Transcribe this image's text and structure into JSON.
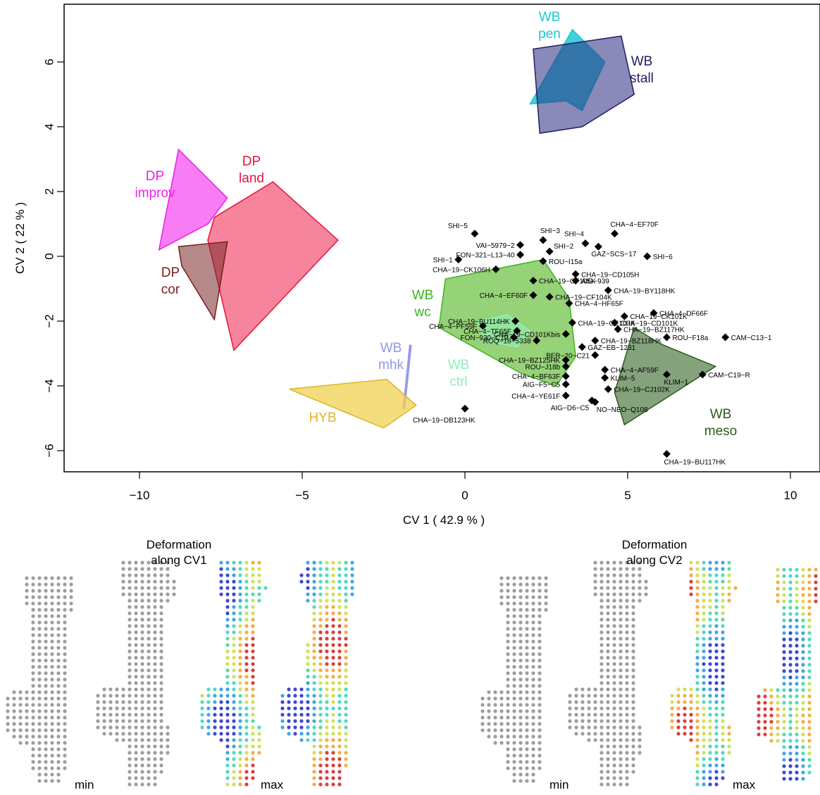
{
  "chart_data": {
    "type": "scatter",
    "xlabel": "CV 1 ( 42.9 % )",
    "ylabel": "CV 2 ( 22 % )",
    "xlim": [
      -12.4,
      10.9
    ],
    "ylim": [
      -6.7,
      7.6
    ],
    "xticks": [
      -10,
      -5,
      0,
      5,
      10
    ],
    "yticks": [
      -6,
      -4,
      -2,
      0,
      2,
      4,
      6
    ],
    "x_tick_labels": [
      "−10",
      "−5",
      "0",
      "5",
      "10"
    ],
    "y_tick_labels": [
      "−6",
      "−4",
      "−2",
      "0",
      "2",
      "4",
      "6"
    ],
    "points": [
      {
        "label": "SHI−5",
        "x": 0.3,
        "y": 0.7
      },
      {
        "label": "SHI−3",
        "x": 2.4,
        "y": 0.5
      },
      {
        "label": "SHI−4",
        "x": 3.7,
        "y": 0.4
      },
      {
        "label": "CHA−4−EF70F",
        "x": 4.6,
        "y": 0.7
      },
      {
        "label": "VAI−5979−2",
        "x": 1.7,
        "y": 0.35
      },
      {
        "label": "SHI−2",
        "x": 2.6,
        "y": 0.15
      },
      {
        "label": "GAZ−SCS−17",
        "x": 4.1,
        "y": 0.3
      },
      {
        "label": "FON−321−L13−40",
        "x": 1.7,
        "y": 0.05
      },
      {
        "label": "SHI−6",
        "x": 5.6,
        "y": 0.0
      },
      {
        "label": "SHI−1",
        "x": -0.2,
        "y": -0.1
      },
      {
        "label": "ROU−I15a",
        "x": 2.4,
        "y": -0.15
      },
      {
        "label": "CHA−19−CK106H",
        "x": 0.95,
        "y": -0.4
      },
      {
        "label": "CHA−19−CF105K",
        "x": 2.1,
        "y": -0.75
      },
      {
        "label": "CHA−19−CD105H",
        "x": 3.4,
        "y": -0.55
      },
      {
        "label": "AIG−939",
        "x": 3.4,
        "y": -0.75
      },
      {
        "label": "CHA−19−CF104K",
        "x": 2.6,
        "y": -1.25
      },
      {
        "label": "CHA−19−BY118HK",
        "x": 4.4,
        "y": -1.05
      },
      {
        "label": "CHA−4−EF60F",
        "x": 2.1,
        "y": -1.2
      },
      {
        "label": "CHA−4−HF65F",
        "x": 3.2,
        "y": -1.45
      },
      {
        "label": "CHA−19−CK101K",
        "x": 4.9,
        "y": -1.85
      },
      {
        "label": "CHA−4−DF66F",
        "x": 5.8,
        "y": -1.75
      },
      {
        "label": "CHA−19−BU114HK",
        "x": 1.55,
        "y": -2.0
      },
      {
        "label": "CHA−19−CE103K",
        "x": 3.3,
        "y": -2.05
      },
      {
        "label": "CHA−19−CD101K",
        "x": 4.6,
        "y": -2.05
      },
      {
        "label": "CHA−4−PF59F",
        "x": 0.55,
        "y": -2.15
      },
      {
        "label": "CHA−19−CD101Kbis",
        "x": 3.1,
        "y": -2.4
      },
      {
        "label": "CHA−19−BZ117HK",
        "x": 4.7,
        "y": -2.25
      },
      {
        "label": "CHA−4−TF65F",
        "x": 1.6,
        "y": -2.3
      },
      {
        "label": "FON−930−C19",
        "x": 1.5,
        "y": -2.5
      },
      {
        "label": "CAM−C13−1",
        "x": 8.0,
        "y": -2.5
      },
      {
        "label": "CHA−19−BZ118HK",
        "x": 4.0,
        "y": -2.6
      },
      {
        "label": "ROU−F18a",
        "x": 6.2,
        "y": -2.5
      },
      {
        "label": "ROQ−18−5338",
        "x": 2.2,
        "y": -2.6
      },
      {
        "label": "GAZ−EB−1231",
        "x": 3.6,
        "y": -2.8
      },
      {
        "label": "BER−20−C21",
        "x": 4.0,
        "y": -3.05
      },
      {
        "label": "CHA−19−BZ125HK",
        "x": 3.1,
        "y": -3.2
      },
      {
        "label": "ROU−J18b",
        "x": 3.1,
        "y": -3.4
      },
      {
        "label": "CHA−4−BF63F",
        "x": 3.1,
        "y": -3.7
      },
      {
        "label": "CHA−4−AF59F",
        "x": 4.3,
        "y": -3.5
      },
      {
        "label": "KLIM−5",
        "x": 4.3,
        "y": -3.75
      },
      {
        "label": "KLIM−1",
        "x": 6.2,
        "y": -3.65
      },
      {
        "label": "CAM−C19−R",
        "x": 7.3,
        "y": -3.65
      },
      {
        "label": "AIG−F5−C5",
        "x": 3.1,
        "y": -3.95
      },
      {
        "label": "CHA−4−YE61F",
        "x": 3.1,
        "y": -4.3
      },
      {
        "label": "CHA−19−CJ102K",
        "x": 4.4,
        "y": -4.1
      },
      {
        "label": "AIG−D6−C5",
        "x": 3.9,
        "y": -4.45
      },
      {
        "label": "NO−NEO−Q108",
        "x": 4.0,
        "y": -4.5
      },
      {
        "label": "CHA−19−DB123HK",
        "x": 0.0,
        "y": -4.7
      },
      {
        "label": "CHA−19−BU117HK",
        "x": 6.2,
        "y": -6.1
      }
    ],
    "groups": [
      {
        "name": "WB pen",
        "label_lines": [
          "WB",
          "pen"
        ],
        "color": "#1ec8d2",
        "fill": "rgba(30,200,210,0.85)",
        "hull": [
          [
            2.0,
            4.7
          ],
          [
            3.3,
            7.0
          ],
          [
            4.3,
            6.0
          ],
          [
            3.6,
            4.5
          ],
          [
            3.1,
            4.8
          ]
        ]
      },
      {
        "name": "WB stall",
        "label_lines": [
          "WB",
          "stall"
        ],
        "color": "#1e1e64",
        "fill": "rgba(40,40,130,0.55)",
        "hull": [
          [
            2.1,
            6.4
          ],
          [
            4.8,
            6.8
          ],
          [
            5.2,
            5.0
          ],
          [
            3.6,
            4.0
          ],
          [
            2.3,
            3.8
          ]
        ]
      },
      {
        "name": "DP improv",
        "label_lines": [
          "DP",
          "improv"
        ],
        "color": "#ee1ee6",
        "fill": "rgba(245,55,240,0.65)",
        "hull": [
          [
            -8.8,
            3.3
          ],
          [
            -7.3,
            1.8
          ],
          [
            -7.9,
            1.0
          ],
          [
            -9.4,
            0.2
          ]
        ]
      },
      {
        "name": "DP land",
        "label_lines": [
          "DP",
          "land"
        ],
        "color": "#e6143c",
        "fill": "rgba(240,50,90,0.60)",
        "hull": [
          [
            -5.9,
            2.3
          ],
          [
            -3.9,
            0.5
          ],
          [
            -7.1,
            -2.9
          ],
          [
            -7.9,
            0.5
          ],
          [
            -7.7,
            1.2
          ]
        ]
      },
      {
        "name": "DP cor",
        "label_lines": [
          "DP",
          "cor"
        ],
        "color": "#781e1e",
        "fill": "rgba(120,40,40,0.55)",
        "hull": [
          [
            -8.8,
            0.3
          ],
          [
            -7.3,
            0.45
          ],
          [
            -7.7,
            -1.95
          ],
          [
            -8.7,
            -0.3
          ]
        ]
      },
      {
        "name": "WB wc",
        "label_lines": [
          "WB",
          "wc"
        ],
        "color": "#3cb41e",
        "fill": "rgba(80,180,30,0.60)",
        "hull": [
          [
            -0.6,
            -0.7
          ],
          [
            2.4,
            -0.1
          ],
          [
            3.2,
            -1.3
          ],
          [
            3.4,
            -3.1
          ],
          [
            2.8,
            -4.0
          ],
          [
            1.7,
            -3.6
          ],
          [
            -0.8,
            -2.2
          ]
        ]
      },
      {
        "name": "WB ctrl",
        "label_lines": [
          "WB",
          "ctrl"
        ],
        "color": "#8cf0b4",
        "fill": "rgba(150,240,190,0.55)",
        "hull": [
          [
            0.4,
            -2.0
          ],
          [
            1.3,
            -1.8
          ],
          [
            2.0,
            -2.3
          ],
          [
            1.6,
            -2.8
          ],
          [
            0.6,
            -2.6
          ]
        ]
      },
      {
        "name": "WB meso",
        "label_lines": [
          "WB",
          "meso"
        ],
        "color": "#2d5a1e",
        "fill": "rgba(50,100,35,0.60)",
        "hull": [
          [
            5.2,
            -2.2
          ],
          [
            6.0,
            -2.7
          ],
          [
            7.7,
            -3.4
          ],
          [
            4.9,
            -5.2
          ],
          [
            4.6,
            -4.2
          ]
        ]
      },
      {
        "name": "WB mhk",
        "label_lines": [
          "WB",
          "mhk"
        ],
        "color": "#9696e6",
        "fill": "rgba(150,150,230,0.90)",
        "hull": [
          [
            -1.7,
            -2.75
          ],
          [
            -1.65,
            -2.75
          ],
          [
            -1.85,
            -4.7
          ],
          [
            -1.9,
            -4.7
          ]
        ]
      },
      {
        "name": "HYB",
        "label_lines": [
          "HYB"
        ],
        "color": "#dcb428",
        "fill": "rgba(240,210,80,0.75)",
        "hull": [
          [
            -5.4,
            -4.1
          ],
          [
            -2.4,
            -3.8
          ],
          [
            -1.5,
            -4.6
          ],
          [
            -2.5,
            -5.3
          ]
        ]
      }
    ]
  },
  "deformation": {
    "cv1": {
      "title_line1": "Deformation",
      "title_line2": "along CV1",
      "min_label": "min",
      "max_label": "max"
    },
    "cv2": {
      "title_line1": "Deformation",
      "title_line2": "along CV2",
      "min_label": "min",
      "max_label": "max"
    }
  },
  "colors": {
    "grey_model": "#8c8c8c",
    "heatmap": [
      "#1e28c8",
      "#1e96dc",
      "#32d2b4",
      "#c8dc3c",
      "#f0a028",
      "#d21e1e"
    ]
  }
}
